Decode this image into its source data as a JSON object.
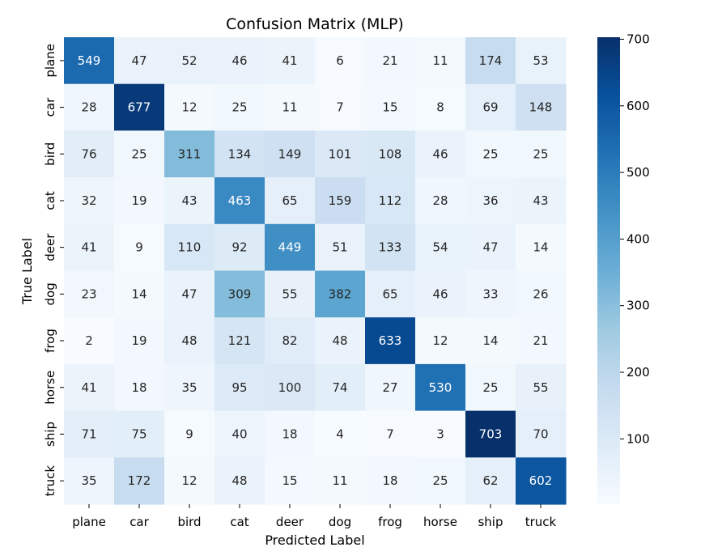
{
  "chart_data": {
    "type": "heatmap",
    "title": "Confusion Matrix (MLP)",
    "xlabel": "Predicted Label",
    "ylabel": "True Label",
    "x_categories": [
      "plane",
      "car",
      "bird",
      "cat",
      "deer",
      "dog",
      "frog",
      "horse",
      "ship",
      "truck"
    ],
    "y_categories": [
      "plane",
      "car",
      "bird",
      "cat",
      "deer",
      "dog",
      "frog",
      "horse",
      "ship",
      "truck"
    ],
    "values": [
      [
        549,
        47,
        52,
        46,
        41,
        6,
        21,
        11,
        174,
        53
      ],
      [
        28,
        677,
        12,
        25,
        11,
        7,
        15,
        8,
        69,
        148
      ],
      [
        76,
        25,
        311,
        134,
        149,
        101,
        108,
        46,
        25,
        25
      ],
      [
        32,
        19,
        43,
        463,
        65,
        159,
        112,
        28,
        36,
        43
      ],
      [
        41,
        9,
        110,
        92,
        449,
        51,
        133,
        54,
        47,
        14
      ],
      [
        23,
        14,
        47,
        309,
        55,
        382,
        65,
        46,
        33,
        26
      ],
      [
        2,
        19,
        48,
        121,
        82,
        48,
        633,
        12,
        14,
        21
      ],
      [
        41,
        18,
        35,
        95,
        100,
        74,
        27,
        530,
        25,
        55
      ],
      [
        71,
        75,
        9,
        40,
        18,
        4,
        7,
        3,
        703,
        70
      ],
      [
        35,
        172,
        12,
        48,
        15,
        11,
        18,
        25,
        62,
        602
      ]
    ],
    "colormap": "Blues",
    "color_range": [
      2,
      703
    ],
    "colorbar_ticks": [
      100,
      200,
      300,
      400,
      500,
      600,
      700
    ],
    "annotations": true,
    "grid": false,
    "legend": "colorbar-right"
  }
}
